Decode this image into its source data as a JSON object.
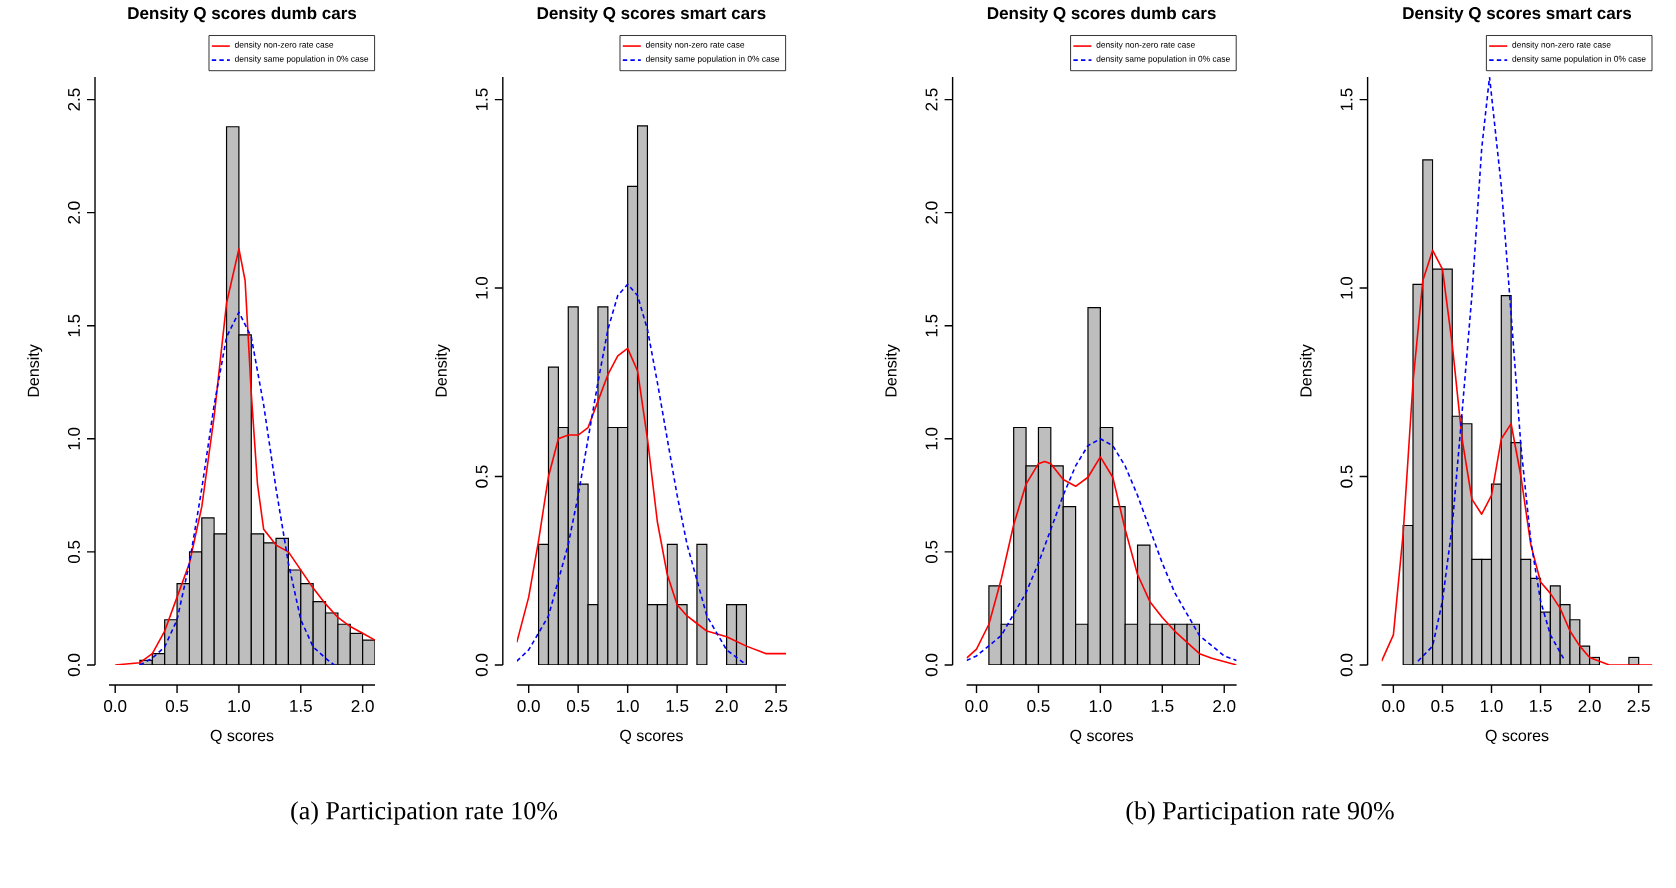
{
  "chart_data": [
    {
      "type": "histogram",
      "title": "Density Q scores dumb cars",
      "xlabel": "Q scores",
      "ylabel": "Density",
      "color": "#bebebe",
      "bins": [
        0.2,
        0.3,
        0.4,
        0.5,
        0.6,
        0.7,
        0.8,
        0.9,
        1.0,
        1.1,
        1.2,
        1.3,
        1.4,
        1.5,
        1.6,
        1.7,
        1.8,
        1.9,
        2.0,
        2.1
      ],
      "values": [
        0.02,
        0.05,
        0.2,
        0.36,
        0.5,
        0.65,
        0.58,
        2.38,
        1.46,
        0.58,
        0.54,
        0.56,
        0.42,
        0.36,
        0.28,
        0.23,
        0.18,
        0.14,
        0.11
      ],
      "series": [
        {
          "name": "density non-zero rate case",
          "color": "#ff0000",
          "type": "line",
          "line_style": "solid",
          "x": [
            0,
            0.2,
            0.3,
            0.4,
            0.5,
            0.6,
            0.7,
            0.8,
            0.9,
            1.0,
            1.05,
            1.1,
            1.15,
            1.2,
            1.3,
            1.4,
            1.5,
            1.6,
            1.7,
            1.8,
            1.9,
            2.0,
            2.1
          ],
          "values": [
            0.0,
            0.01,
            0.05,
            0.15,
            0.3,
            0.45,
            0.7,
            1.1,
            1.6,
            1.84,
            1.7,
            1.2,
            0.8,
            0.6,
            0.53,
            0.5,
            0.42,
            0.34,
            0.27,
            0.21,
            0.17,
            0.14,
            0.11
          ]
        },
        {
          "name": "density same population in 0% case",
          "color": "#0000ff",
          "type": "line",
          "line_style": "dashed",
          "x": [
            0.2,
            0.3,
            0.4,
            0.5,
            0.6,
            0.7,
            0.8,
            0.9,
            1.0,
            1.1,
            1.2,
            1.3,
            1.4,
            1.5,
            1.6,
            1.7,
            1.77
          ],
          "values": [
            0.0,
            0.03,
            0.08,
            0.2,
            0.45,
            0.78,
            1.15,
            1.45,
            1.56,
            1.45,
            1.15,
            0.78,
            0.45,
            0.2,
            0.08,
            0.03,
            0.0
          ]
        }
      ],
      "xlim": [
        -0.05,
        2.1
      ],
      "ylim": [
        0,
        2.6
      ],
      "xticks": [
        {
          "value": 0,
          "label": "0.0"
        },
        0.5,
        {
          "value": 1,
          "label": "1.0"
        },
        1.5,
        {
          "value": 2,
          "label": "2.0"
        }
      ],
      "yticks": [
        {
          "value": 0,
          "label": "0.0"
        },
        0.5,
        {
          "value": 1,
          "label": "1.0"
        },
        1.5,
        {
          "value": 2,
          "label": "2.0"
        },
        2.5
      ],
      "legend": "top right",
      "annotations": [
        "(a) Participation rate 10%"
      ]
    },
    {
      "type": "histogram",
      "title": "Density Q scores smart cars",
      "xlabel": "Q scores",
      "ylabel": "Density",
      "color": "#bebebe",
      "bins": [
        0.1,
        0.2,
        0.3,
        0.4,
        0.5,
        0.6,
        0.7,
        0.8,
        0.9,
        1.0,
        1.1,
        1.2,
        1.3,
        1.4,
        1.5,
        1.6,
        1.7,
        1.8,
        1.9,
        2.0,
        2.1,
        2.2
      ],
      "values": [
        0.32,
        0.79,
        0.63,
        0.95,
        0.48,
        0.16,
        0.95,
        0.63,
        0.63,
        1.27,
        1.43,
        0.16,
        0.16,
        0.32,
        0.16,
        0,
        0.32,
        0,
        0,
        0.16,
        0.16
      ],
      "series": [
        {
          "name": "density non-zero rate case",
          "color": "#ff0000",
          "type": "line",
          "line_style": "solid",
          "x": [
            -0.12,
            0.0,
            0.1,
            0.2,
            0.3,
            0.4,
            0.5,
            0.6,
            0.7,
            0.8,
            0.9,
            1.0,
            1.1,
            1.2,
            1.3,
            1.4,
            1.5,
            1.6,
            1.7,
            1.8,
            2.0,
            2.2,
            2.4,
            2.6
          ],
          "values": [
            0.06,
            0.18,
            0.33,
            0.5,
            0.6,
            0.61,
            0.61,
            0.63,
            0.7,
            0.77,
            0.82,
            0.84,
            0.78,
            0.6,
            0.38,
            0.24,
            0.16,
            0.13,
            0.11,
            0.09,
            0.075,
            0.05,
            0.03,
            0.03
          ]
        },
        {
          "name": "density same population in 0% case",
          "color": "#0000ff",
          "type": "line",
          "line_style": "dashed",
          "x": [
            -0.12,
            0.0,
            0.2,
            0.4,
            0.5,
            0.6,
            0.7,
            0.8,
            0.9,
            1.0,
            1.1,
            1.2,
            1.3,
            1.4,
            1.5,
            1.6,
            1.8,
            2.0,
            2.2
          ],
          "values": [
            0.01,
            0.04,
            0.13,
            0.32,
            0.45,
            0.6,
            0.75,
            0.89,
            0.98,
            1.01,
            0.98,
            0.89,
            0.75,
            0.6,
            0.45,
            0.32,
            0.13,
            0.04,
            0.0
          ]
        }
      ],
      "xlim": [
        -0.12,
        2.6
      ],
      "ylim": [
        0,
        1.56
      ],
      "xticks": [
        {
          "value": 0,
          "label": "0.0"
        },
        0.5,
        {
          "value": 1,
          "label": "1.0"
        },
        1.5,
        {
          "value": 2,
          "label": "2.0"
        },
        2.5
      ],
      "yticks": [
        {
          "value": 0,
          "label": "0.0"
        },
        0.5,
        {
          "value": 1,
          "label": "1.0"
        },
        1.5
      ],
      "legend": "top right"
    },
    {
      "type": "histogram",
      "title": "Density Q scores dumb cars",
      "xlabel": "Q scores",
      "ylabel": "Density",
      "color": "#bebebe",
      "bins": [
        0.1,
        0.2,
        0.3,
        0.4,
        0.5,
        0.6,
        0.7,
        0.8,
        0.9,
        1.0,
        1.1,
        1.2,
        1.3,
        1.4,
        1.5,
        1.6,
        1.7,
        1.8
      ],
      "values": [
        0.35,
        0.18,
        1.05,
        0.88,
        1.05,
        0.88,
        0.7,
        0.18,
        1.58,
        1.05,
        0.7,
        0.18,
        0.53,
        0.18,
        0.18,
        0.18,
        0.18
      ],
      "series": [
        {
          "name": "density non-zero rate case",
          "color": "#ff0000",
          "type": "line",
          "line_style": "solid",
          "x": [
            -0.08,
            0.0,
            0.1,
            0.2,
            0.3,
            0.4,
            0.5,
            0.55,
            0.6,
            0.7,
            0.8,
            0.9,
            1.0,
            1.1,
            1.2,
            1.3,
            1.4,
            1.5,
            1.6,
            1.7,
            1.8,
            1.9,
            2.1
          ],
          "values": [
            0.03,
            0.07,
            0.18,
            0.38,
            0.62,
            0.8,
            0.89,
            0.9,
            0.89,
            0.82,
            0.79,
            0.83,
            0.92,
            0.83,
            0.6,
            0.4,
            0.28,
            0.21,
            0.15,
            0.1,
            0.05,
            0.03,
            0.0
          ]
        },
        {
          "name": "density same population in 0% case",
          "color": "#0000ff",
          "type": "line",
          "line_style": "dashed",
          "x": [
            -0.08,
            0.0,
            0.2,
            0.4,
            0.5,
            0.6,
            0.7,
            0.8,
            0.9,
            1.0,
            1.1,
            1.2,
            1.3,
            1.4,
            1.5,
            1.6,
            1.8,
            2.0,
            2.1
          ],
          "values": [
            0.02,
            0.04,
            0.13,
            0.32,
            0.45,
            0.6,
            0.75,
            0.88,
            0.97,
            1.0,
            0.97,
            0.88,
            0.75,
            0.6,
            0.45,
            0.32,
            0.13,
            0.04,
            0.02
          ]
        }
      ],
      "xlim": [
        -0.08,
        2.1
      ],
      "ylim": [
        0,
        2.6
      ],
      "xticks": [
        {
          "value": 0,
          "label": "0.0"
        },
        0.5,
        {
          "value": 1,
          "label": "1.0"
        },
        1.5,
        {
          "value": 2,
          "label": "2.0"
        }
      ],
      "yticks": [
        {
          "value": 0,
          "label": "0.0"
        },
        0.5,
        {
          "value": 1,
          "label": "1.0"
        },
        1.5,
        {
          "value": 2,
          "label": "2.0"
        },
        2.5
      ],
      "legend": "top right",
      "annotations": [
        "(b) Participation rate 90%"
      ]
    },
    {
      "type": "histogram",
      "title": "Density Q scores smart cars",
      "xlabel": "Q scores",
      "ylabel": "Density",
      "color": "#bebebe",
      "bins": [
        0.1,
        0.2,
        0.3,
        0.4,
        0.5,
        0.6,
        0.7,
        0.8,
        0.9,
        1.0,
        1.1,
        1.2,
        1.3,
        1.4,
        1.5,
        1.6,
        1.7,
        1.8,
        1.9,
        2.0,
        2.1,
        2.2,
        2.3,
        2.4,
        2.5
      ],
      "values": [
        0.37,
        1.01,
        1.34,
        1.05,
        1.05,
        0.66,
        0.64,
        0.28,
        0.28,
        0.48,
        0.98,
        0.59,
        0.28,
        0.23,
        0.14,
        0.21,
        0.16,
        0.12,
        0.05,
        0.02,
        0,
        0,
        0,
        0.02
      ],
      "series": [
        {
          "name": "density non-zero rate case",
          "color": "#ff0000",
          "type": "line",
          "line_style": "solid",
          "x": [
            -0.12,
            0.0,
            0.1,
            0.2,
            0.3,
            0.4,
            0.5,
            0.6,
            0.7,
            0.8,
            0.9,
            1.0,
            1.1,
            1.2,
            1.3,
            1.4,
            1.5,
            1.6,
            1.7,
            1.8,
            1.9,
            2.0,
            2.2,
            2.64
          ],
          "values": [
            0.01,
            0.08,
            0.35,
            0.75,
            1.02,
            1.1,
            1.05,
            0.85,
            0.6,
            0.44,
            0.4,
            0.45,
            0.6,
            0.64,
            0.5,
            0.32,
            0.22,
            0.19,
            0.15,
            0.09,
            0.05,
            0.02,
            0.0,
            0.0
          ]
        },
        {
          "name": "density same population in 0% case",
          "color": "#0000ff",
          "type": "line",
          "line_style": "dashed",
          "x": [
            0.25,
            0.4,
            0.5,
            0.6,
            0.7,
            0.8,
            0.9,
            0.98,
            1.1,
            1.2,
            1.3,
            1.4,
            1.5,
            1.6,
            1.75
          ],
          "values": [
            0.01,
            0.05,
            0.17,
            0.37,
            0.67,
            0.98,
            1.37,
            1.56,
            1.27,
            0.93,
            0.58,
            0.33,
            0.17,
            0.08,
            0.01
          ]
        }
      ],
      "xlim": [
        -0.12,
        2.64
      ],
      "ylim": [
        0,
        1.56
      ],
      "xticks": [
        {
          "value": 0,
          "label": "0.0"
        },
        0.5,
        {
          "value": 1,
          "label": "1.0"
        },
        1.5,
        {
          "value": 2,
          "label": "2.0"
        },
        2.5
      ],
      "yticks": [
        {
          "value": 0,
          "label": "0.0"
        },
        0.5,
        {
          "value": 1,
          "label": "1.0"
        },
        1.5
      ],
      "legend": "top right"
    }
  ]
}
